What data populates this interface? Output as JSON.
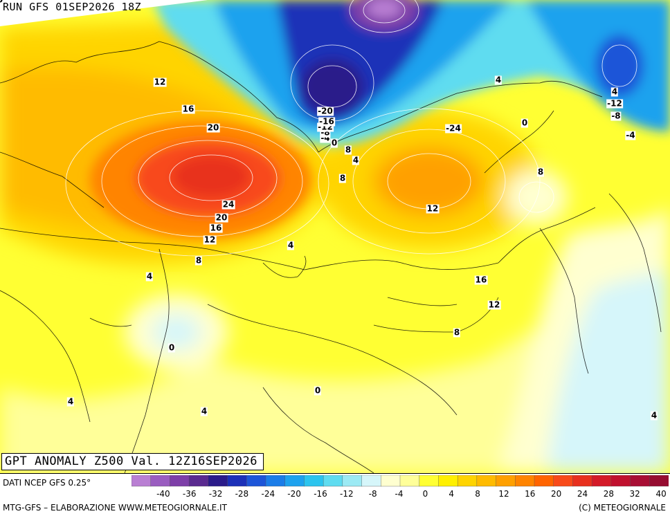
{
  "header": {
    "run": "RUN GFS 01SEP2026 18Z"
  },
  "title": "GPT ANOMALY Z500 Val. 12Z16SEP2026",
  "footer": {
    "source": "DATI NCEP GFS 0.25°",
    "credit_left": "MTG-GFS – ELABORAZIONE WWW.METEOGIORNALE.IT",
    "credit_right": "(C) METEOGIORNALE"
  },
  "legend": {
    "tick_labels": [
      "-40",
      "-36",
      "-32",
      "-28",
      "-24",
      "-20",
      "-16",
      "-12",
      "-8",
      "-4",
      "0",
      "4",
      "8",
      "12",
      "16",
      "20",
      "24",
      "28",
      "32",
      "40"
    ],
    "colors": [
      "#b97fd3",
      "#9a5dc0",
      "#7e3fa8",
      "#5a2a90",
      "#2b1b8a",
      "#1c30b8",
      "#1d55d8",
      "#1b7de8",
      "#1ea2ee",
      "#2cc4ee",
      "#5fdcf0",
      "#9ceaf4",
      "#d6f6fa",
      "#ffffd0",
      "#ffff99",
      "#ffff33",
      "#fff000",
      "#ffd400",
      "#ffbb00",
      "#ffa000",
      "#ff8400",
      "#ff6400",
      "#f84a1a",
      "#e8301e",
      "#d41a28",
      "#c0102e",
      "#a80e34",
      "#960c30"
    ]
  },
  "contour_labels": [
    {
      "text": "12",
      "region": "ural-west"
    },
    {
      "text": "16",
      "region": "ural-west"
    },
    {
      "text": "20",
      "region": "ural-west"
    },
    {
      "text": "24",
      "region": "west-siberia-high"
    },
    {
      "text": "20",
      "region": "west-siberia-high"
    },
    {
      "text": "16",
      "region": "west-siberia-high"
    },
    {
      "text": "12",
      "region": "west-siberia-high"
    },
    {
      "text": "8",
      "region": "kazakh-north"
    },
    {
      "text": "4",
      "region": "caspian"
    },
    {
      "text": "4",
      "region": "altai"
    },
    {
      "text": "8",
      "region": "central-siberia"
    },
    {
      "text": "8",
      "region": "taymyr"
    },
    {
      "text": "4",
      "region": "taymyr"
    },
    {
      "text": "0",
      "region": "taymyr"
    },
    {
      "text": "-4",
      "region": "kara-sea-low"
    },
    {
      "text": "-8",
      "region": "kara-sea-low"
    },
    {
      "text": "-12",
      "region": "kara-sea-low"
    },
    {
      "text": "-16",
      "region": "kara-sea-low"
    },
    {
      "text": "-20",
      "region": "kara-sea-low"
    },
    {
      "text": "-24",
      "region": "kara-sea-low"
    },
    {
      "text": "12",
      "region": "yakutia"
    },
    {
      "text": "16",
      "region": "yakutia-high"
    },
    {
      "text": "12",
      "region": "lake-baikal"
    },
    {
      "text": "8",
      "region": "lake-baikal"
    },
    {
      "text": "4",
      "region": "mongolia"
    },
    {
      "text": "0",
      "region": "east-siberian-sea"
    },
    {
      "text": "8",
      "region": "kolyma"
    },
    {
      "text": "4",
      "region": "okhotsk"
    },
    {
      "text": "-12",
      "region": "bering-low"
    },
    {
      "text": "-8",
      "region": "bering-low"
    },
    {
      "text": "-4",
      "region": "bering-low"
    },
    {
      "text": "0",
      "region": "alaska"
    },
    {
      "text": "0",
      "region": "aral-sea"
    },
    {
      "text": "4",
      "region": "tarim"
    },
    {
      "text": "4",
      "region": "tibet"
    },
    {
      "text": "4",
      "region": "iran"
    },
    {
      "text": "4",
      "region": "arabia"
    },
    {
      "text": "0",
      "region": "pacific"
    }
  ]
}
